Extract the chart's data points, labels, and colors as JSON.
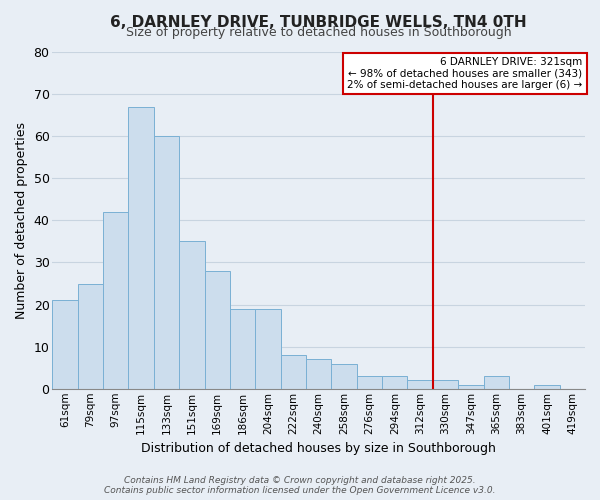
{
  "title": "6, DARNLEY DRIVE, TUNBRIDGE WELLS, TN4 0TH",
  "subtitle": "Size of property relative to detached houses in Southborough",
  "xlabel": "Distribution of detached houses by size in Southborough",
  "ylabel": "Number of detached properties",
  "bin_labels": [
    "61sqm",
    "79sqm",
    "97sqm",
    "115sqm",
    "133sqm",
    "151sqm",
    "169sqm",
    "186sqm",
    "204sqm",
    "222sqm",
    "240sqm",
    "258sqm",
    "276sqm",
    "294sqm",
    "312sqm",
    "330sqm",
    "347sqm",
    "365sqm",
    "383sqm",
    "401sqm",
    "419sqm"
  ],
  "bar_heights": [
    21,
    25,
    42,
    67,
    60,
    35,
    28,
    19,
    19,
    8,
    7,
    6,
    3,
    3,
    2,
    2,
    1,
    3,
    0,
    1,
    0
  ],
  "bar_color": "#ccdded",
  "bar_edge_color": "#7ab0d4",
  "vline_x_index": 15,
  "vline_color": "#cc0000",
  "ylim": [
    0,
    80
  ],
  "yticks": [
    0,
    10,
    20,
    30,
    40,
    50,
    60,
    70,
    80
  ],
  "annotation_title": "6 DARNLEY DRIVE: 321sqm",
  "annotation_line1": "← 98% of detached houses are smaller (343)",
  "annotation_line2": "2% of semi-detached houses are larger (6) →",
  "annotation_box_color": "#ffffff",
  "annotation_box_edge": "#cc0000",
  "footer_line1": "Contains HM Land Registry data © Crown copyright and database right 2025.",
  "footer_line2": "Contains public sector information licensed under the Open Government Licence v3.0.",
  "background_color": "#e8eef5",
  "grid_color": "#c8d4e0",
  "title_font": "DejaVu Sans",
  "tick_font": "DejaVu Sans"
}
